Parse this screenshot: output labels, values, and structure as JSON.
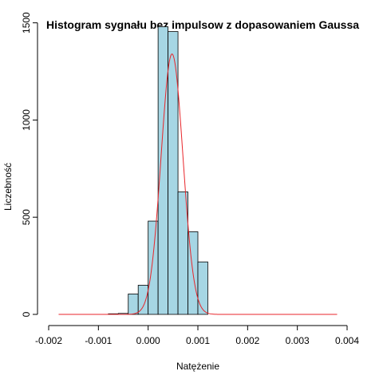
{
  "chart_data": {
    "type": "bar",
    "title": "Histogram sygnału bez impulsow z dopasowaniem Gaussa",
    "xlabel": "Natężenie",
    "ylabel": "Liczebność",
    "xlim": [
      -0.002,
      0.004
    ],
    "ylim": [
      0,
      1560
    ],
    "x_ticks": [
      -0.002,
      -0.001,
      0.0,
      0.001,
      0.002,
      0.003,
      0.004
    ],
    "x_tick_labels": [
      "-0.002",
      "-0.001",
      "0.000",
      "0.001",
      "0.002",
      "0.003",
      "0.004"
    ],
    "y_ticks": [
      0,
      500,
      1000,
      1500
    ],
    "y_tick_labels": [
      "0",
      "500",
      "1000",
      "1500"
    ],
    "bin_width": 0.0002,
    "bins": [
      {
        "x0": -0.0018,
        "x1": -0.0016,
        "count": 0
      },
      {
        "x0": -0.0016,
        "x1": -0.0014,
        "count": 0
      },
      {
        "x0": -0.0014,
        "x1": -0.0012,
        "count": 0
      },
      {
        "x0": -0.0012,
        "x1": -0.001,
        "count": 0
      },
      {
        "x0": -0.001,
        "x1": -0.0008,
        "count": 0
      },
      {
        "x0": -0.0008,
        "x1": -0.0006,
        "count": 3
      },
      {
        "x0": -0.0006,
        "x1": -0.0004,
        "count": 5
      },
      {
        "x0": -0.0004,
        "x1": -0.0002,
        "count": 105
      },
      {
        "x0": -0.0002,
        "x1": 0.0,
        "count": 150
      },
      {
        "x0": 0.0,
        "x1": 0.0002,
        "count": 480
      },
      {
        "x0": 0.0002,
        "x1": 0.0004,
        "count": 1480
      },
      {
        "x0": 0.0004,
        "x1": 0.0006,
        "count": 1455
      },
      {
        "x0": 0.0006,
        "x1": 0.0008,
        "count": 630
      },
      {
        "x0": 0.0008,
        "x1": 0.001,
        "count": 425
      },
      {
        "x0": 0.001,
        "x1": 0.0012,
        "count": 270
      },
      {
        "x0": 0.0012,
        "x1": 0.0014,
        "count": 0
      },
      {
        "x0": 0.0014,
        "x1": 0.0016,
        "count": 0
      },
      {
        "x0": 0.0016,
        "x1": 0.0018,
        "count": 0
      },
      {
        "x0": 0.0018,
        "x1": 0.002,
        "count": 0
      },
      {
        "x0": 0.002,
        "x1": 0.0022,
        "count": 0
      },
      {
        "x0": 0.0022,
        "x1": 0.0024,
        "count": 0
      },
      {
        "x0": 0.0024,
        "x1": 0.0026,
        "count": 0
      },
      {
        "x0": 0.0026,
        "x1": 0.0028,
        "count": 0
      },
      {
        "x0": 0.0028,
        "x1": 0.003,
        "count": 0
      },
      {
        "x0": 0.003,
        "x1": 0.0032,
        "count": 0
      },
      {
        "x0": 0.0032,
        "x1": 0.0034,
        "count": 0
      },
      {
        "x0": 0.0034,
        "x1": 0.0036,
        "count": 0
      },
      {
        "x0": 0.0036,
        "x1": 0.0038,
        "count": 0
      },
      {
        "x0": 0.0038,
        "x1": 0.004,
        "count": 0
      }
    ],
    "gaussian_fit": {
      "mean": 0.00048,
      "sd": 0.00022,
      "peak": 1340,
      "x_range": [
        -0.0018,
        0.0038
      ]
    },
    "colors": {
      "bar_fill": "#a6d6e4",
      "bar_stroke": "#000000",
      "curve": "#e8262b"
    },
    "grid": false
  }
}
